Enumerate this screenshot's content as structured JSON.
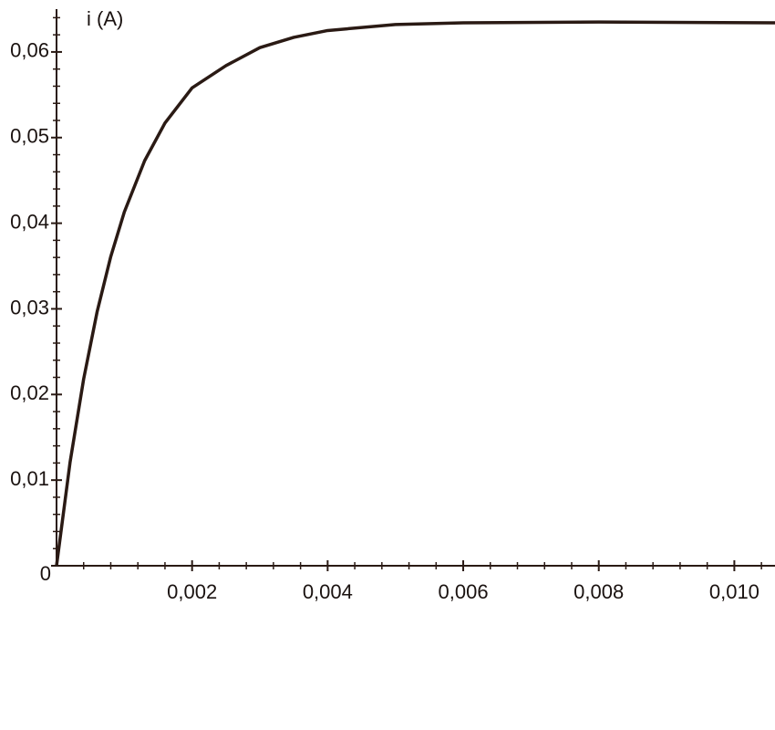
{
  "chart_data": {
    "type": "line",
    "y_label": "i (A)",
    "x": [
      0,
      0.0002,
      0.0004,
      0.0006,
      0.0008,
      0.001,
      0.0013,
      0.0016,
      0.002,
      0.0025,
      0.003,
      0.0035,
      0.004,
      0.005,
      0.006,
      0.008,
      0.0106
    ],
    "series": [
      {
        "color": "#2a1a14",
        "values": [
          0,
          0.0121,
          0.0218,
          0.0297,
          0.0361,
          0.0413,
          0.0473,
          0.0517,
          0.0558,
          0.0584,
          0.0605,
          0.0617,
          0.0625,
          0.0632,
          0.0634,
          0.0635,
          0.0634
        ]
      }
    ],
    "xlim": [
      0,
      0.0106
    ],
    "ylim": [
      0,
      0.065
    ],
    "xticks": [
      {
        "value": 0.002,
        "label": "0,002"
      },
      {
        "value": 0.004,
        "label": "0,004"
      },
      {
        "value": 0.006,
        "label": "0,006"
      },
      {
        "value": 0.008,
        "label": "0,008"
      },
      {
        "value": 0.01,
        "label": "0,010"
      }
    ],
    "yticks": [
      0,
      {
        "value": 0.01,
        "label": "0,01"
      },
      {
        "value": 0.02,
        "label": "0,02"
      },
      {
        "value": 0.03,
        "label": "0,03"
      },
      {
        "value": 0.04,
        "label": "0,04"
      },
      {
        "value": 0.05,
        "label": "0,05"
      },
      {
        "value": 0.06,
        "label": "0,06"
      }
    ],
    "grid": false
  }
}
